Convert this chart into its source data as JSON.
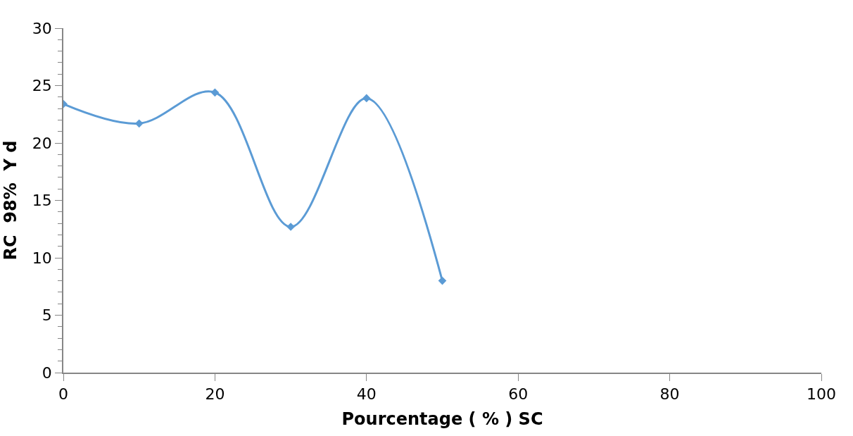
{
  "chart_data": {
    "type": "line",
    "xlabel": "Pourcentage ( % ) SC",
    "ylabel": "RC  98%  Y d",
    "x": [
      0,
      10,
      20,
      30,
      40,
      50
    ],
    "series": [
      {
        "color": "#5b9bd5",
        "values": [
          23.4,
          21.7,
          24.4,
          12.7,
          23.9,
          8.0
        ]
      }
    ],
    "xlim": [
      0,
      100
    ],
    "xticks": [
      0,
      20,
      40,
      60,
      80,
      100
    ],
    "ylim": [
      0,
      30
    ],
    "yticks": [
      0,
      5,
      10,
      15,
      20,
      25,
      30
    ],
    "marker": "diamond",
    "line_style": "solid"
  }
}
